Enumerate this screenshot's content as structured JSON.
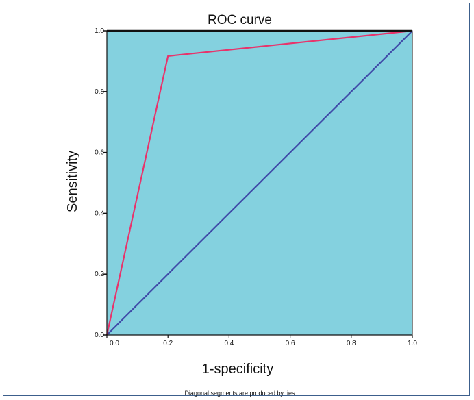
{
  "chart_data": {
    "type": "line",
    "title": "ROC curve",
    "xlabel": "1-specificity",
    "ylabel": "Sensitivity",
    "xlim": [
      0,
      1
    ],
    "ylim": [
      0,
      1
    ],
    "xticks": [
      "0.0",
      "0.2",
      "0.4",
      "0.6",
      "0.8",
      "1.0"
    ],
    "yticks": [
      "0.0",
      "0.2",
      "0.4",
      "0.6",
      "0.8",
      "1.0"
    ],
    "grid": false,
    "series": [
      {
        "x": [
          0.0,
          0.2,
          1.0
        ],
        "y": [
          0.0,
          0.917,
          1.0
        ],
        "color": "#e8336b"
      },
      {
        "x": [
          0.0,
          1.0
        ],
        "y": [
          0.0,
          1.0
        ],
        "color": "#3f4aa8"
      }
    ],
    "plot_background": "#84d1df",
    "footnote": "Diagonal segments are produced by ties"
  }
}
